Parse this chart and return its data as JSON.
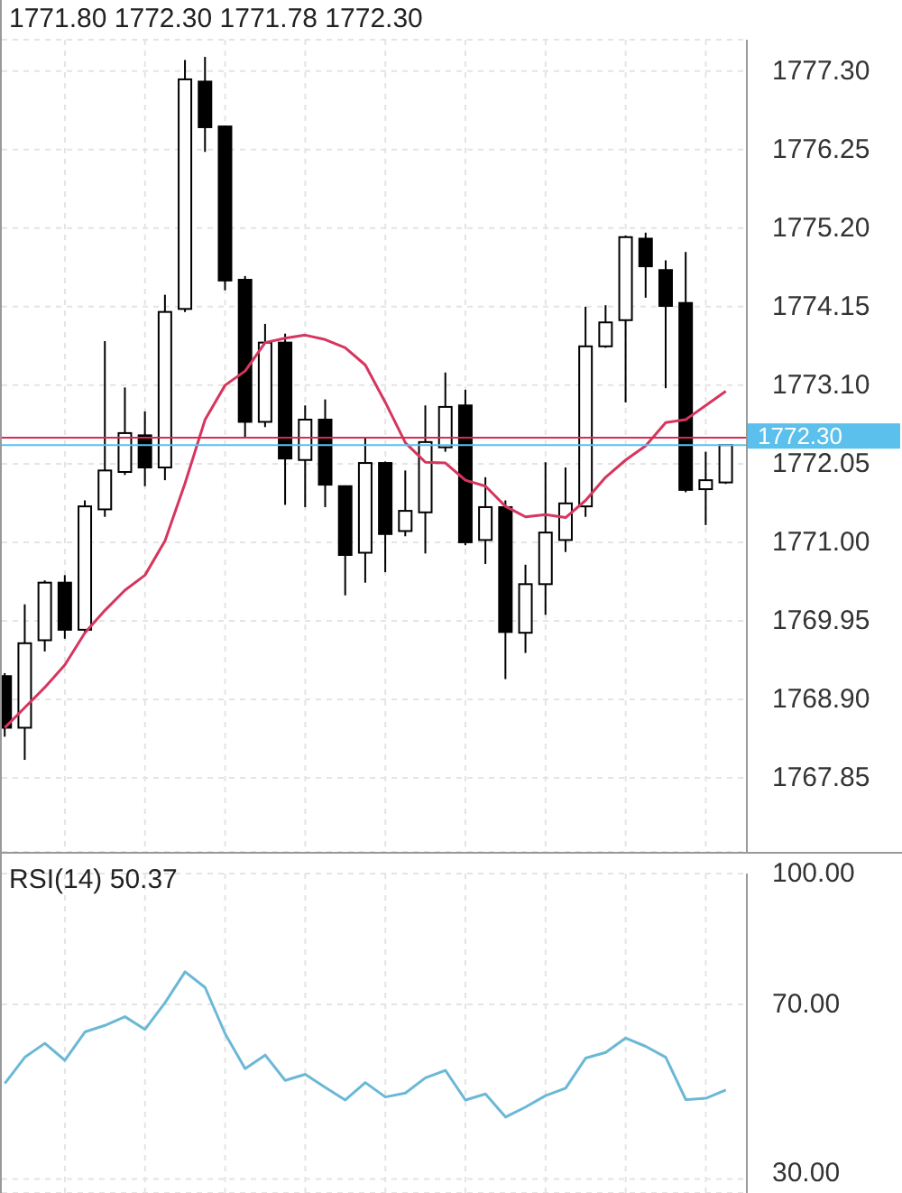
{
  "chart_data": [
    {
      "type": "candlestick",
      "annotations": [
        "1771.80 1772.30 1771.78 1772.30"
      ],
      "categories": [
        null,
        null,
        null,
        null,
        null,
        null,
        null,
        null,
        null,
        null,
        null,
        null,
        null,
        null,
        null,
        null,
        null,
        null,
        null,
        null,
        null,
        null,
        null,
        null,
        null,
        null,
        null,
        null,
        null,
        null,
        null,
        null,
        null,
        null,
        null,
        null,
        null
      ],
      "color": "#000000",
      "ohlc": [
        [
          1769.21,
          1769.25,
          1768.4,
          1768.52
        ],
        [
          1768.52,
          1770.17,
          1768.09,
          1769.65
        ],
        [
          1769.69,
          1770.49,
          1769.54,
          1770.46
        ],
        [
          1770.46,
          1770.56,
          1769.71,
          1769.83
        ],
        [
          1769.83,
          1771.56,
          1769.79,
          1771.48
        ],
        [
          1771.44,
          1773.69,
          1771.34,
          1771.96
        ],
        [
          1771.94,
          1773.07,
          1771.9,
          1772.46
        ],
        [
          1772.43,
          1772.75,
          1771.75,
          1772.0
        ],
        [
          1772.0,
          1774.31,
          1771.83,
          1774.08
        ],
        [
          1774.12,
          1777.45,
          1774.08,
          1777.19
        ],
        [
          1777.16,
          1777.49,
          1776.22,
          1776.55
        ],
        [
          1776.56,
          1776.57,
          1774.37,
          1774.5
        ],
        [
          1774.51,
          1774.56,
          1772.4,
          1772.61
        ],
        [
          1772.61,
          1773.92,
          1772.54,
          1773.67
        ],
        [
          1773.67,
          1773.79,
          1771.5,
          1772.12
        ],
        [
          1772.1,
          1772.83,
          1771.47,
          1772.64
        ],
        [
          1772.64,
          1772.91,
          1771.47,
          1771.77
        ],
        [
          1771.75,
          1771.76,
          1770.29,
          1770.83
        ],
        [
          1770.86,
          1772.4,
          1770.46,
          1772.06
        ],
        [
          1772.06,
          1772.08,
          1770.6,
          1771.11
        ],
        [
          1771.15,
          1771.96,
          1771.08,
          1771.42
        ],
        [
          1771.4,
          1772.83,
          1770.85,
          1772.34
        ],
        [
          1772.27,
          1773.27,
          1772.21,
          1772.81
        ],
        [
          1772.83,
          1773.04,
          1770.96,
          1771.0
        ],
        [
          1771.03,
          1771.87,
          1770.71,
          1771.47
        ],
        [
          1771.47,
          1771.56,
          1769.17,
          1769.8
        ],
        [
          1769.79,
          1770.7,
          1769.52,
          1770.44
        ],
        [
          1770.44,
          1772.07,
          1770.03,
          1771.13
        ],
        [
          1771.03,
          1772.0,
          1770.87,
          1771.52
        ],
        [
          1771.48,
          1774.15,
          1771.34,
          1773.62
        ],
        [
          1773.62,
          1774.17,
          1773.6,
          1773.94
        ],
        [
          1773.97,
          1775.1,
          1772.87,
          1775.08
        ],
        [
          1775.06,
          1775.14,
          1774.27,
          1774.69
        ],
        [
          1774.64,
          1774.77,
          1773.06,
          1774.16
        ],
        [
          1774.2,
          1774.88,
          1771.67,
          1771.7
        ],
        [
          1771.71,
          1772.21,
          1771.23,
          1771.83
        ],
        [
          1771.8,
          1772.3,
          1771.78,
          1772.3
        ]
      ],
      "series": [
        {
          "type": "line",
          "color": "#d6365e",
          "values": [
            1768.52,
            1768.79,
            1769.06,
            1769.36,
            1769.79,
            1770.09,
            1770.36,
            1770.56,
            1771.02,
            1771.79,
            1772.64,
            1773.1,
            1773.29,
            1773.67,
            1773.73,
            1773.77,
            1773.71,
            1773.6,
            1773.37,
            1772.87,
            1772.33,
            1772.07,
            1772.06,
            1771.83,
            1771.75,
            1771.48,
            1771.34,
            1771.37,
            1771.33,
            1771.56,
            1771.87,
            1772.1,
            1772.29,
            1772.6,
            1772.64,
            1772.83,
            1773.02
          ]
        }
      ],
      "ylim": [
        1766.86,
        1777.72
      ],
      "yticks": [
        {
          "value": 1767.85,
          "label": "1767.85"
        },
        {
          "value": 1768.9,
          "label": "1768.90"
        },
        {
          "value": 1769.95,
          "label": "1769.95"
        },
        {
          "value": 1771,
          "label": "1771.00"
        },
        {
          "value": 1772.05,
          "label": "1772.05"
        },
        {
          "value": 1773.1,
          "label": "1773.10"
        },
        {
          "value": 1774.15,
          "label": "1774.15"
        },
        {
          "value": 1775.2,
          "label": "1775.20"
        },
        {
          "value": 1776.25,
          "label": "1776.25"
        },
        {
          "value": 1777.3,
          "label": "1777.30"
        }
      ],
      "grid": true,
      "ref_lines": [
        {
          "axis": "y",
          "value": 1772.4,
          "color": "#e0284f"
        },
        {
          "axis": "y",
          "value": 1772.3,
          "label": "1772.30",
          "color": "#5bc0eb"
        }
      ]
    },
    {
      "type": "line",
      "title": "RSI(14) 50.37",
      "categories": [
        null,
        null,
        null,
        null,
        null,
        null,
        null,
        null,
        null,
        null,
        null,
        null,
        null,
        null,
        null,
        null,
        null,
        null,
        null,
        null,
        null,
        null,
        null,
        null,
        null,
        null,
        null,
        null,
        null,
        null,
        null,
        null,
        null,
        null,
        null,
        null,
        null
      ],
      "color": "#6bb8d6",
      "values": [
        51.9,
        57.9,
        61.1,
        57.2,
        63.7,
        65.2,
        67.2,
        64.3,
        70.4,
        77.5,
        73.9,
        63.3,
        55.3,
        58.4,
        52.6,
        54.0,
        51.0,
        48.1,
        52.1,
        48.8,
        49.7,
        53.2,
        54.9,
        48.1,
        49.5,
        44.2,
        46.5,
        49.1,
        50.8,
        57.7,
        59.0,
        62.3,
        60.4,
        57.9,
        48.2,
        48.5,
        50.4
      ],
      "ylim": [
        26.8,
        100
      ],
      "yticks": [
        {
          "value": 100,
          "label": "100.00"
        },
        {
          "value": 70,
          "label": "70.00"
        },
        {
          "value": 30,
          "label": "30.00"
        }
      ],
      "grid": true
    }
  ]
}
